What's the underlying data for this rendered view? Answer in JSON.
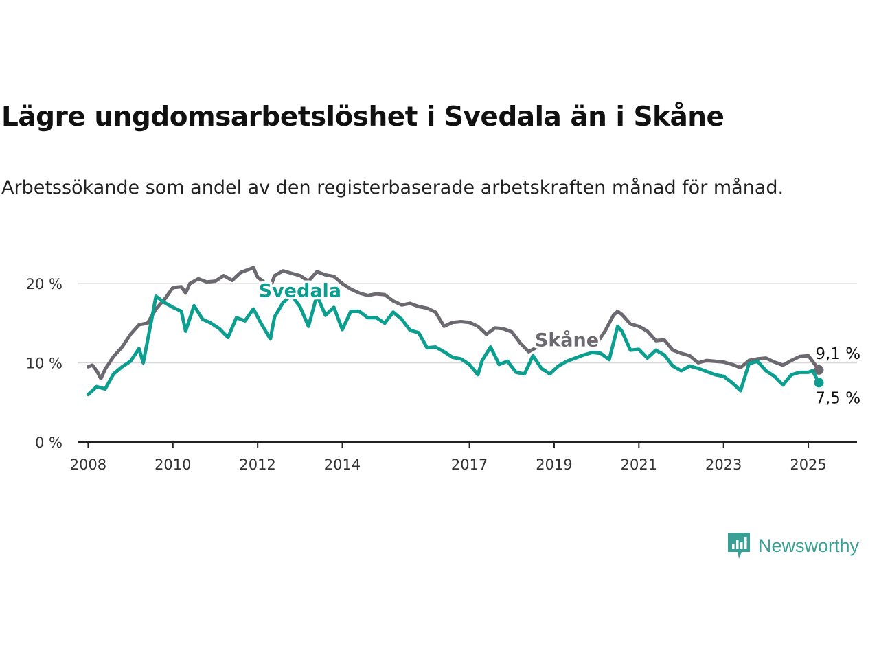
{
  "title": "Lägre ungdomsarbetslöshet i Svedala än i Skåne",
  "subtitle": "Arbetssökande som andel av den registerbaserade arbetskraften månad för månad.",
  "brand": {
    "name": "Newsworthy",
    "color": "#3aa095"
  },
  "chart_data": {
    "type": "line",
    "title": "Lägre ungdomsarbetslöshet i Svedala än i Skåne",
    "ylim": [
      0,
      22
    ],
    "y_ticks": [
      0,
      10,
      20
    ],
    "y_tick_labels": [
      "0 %",
      "10 %",
      "20 %"
    ],
    "x_ticks": [
      2008,
      2010,
      2012,
      2014,
      2017,
      2019,
      2021,
      2023,
      2025
    ],
    "x_range": [
      2007.75,
      2026.15
    ],
    "grid": true,
    "series": [
      {
        "name": "Skåne",
        "color": "#6c6a70",
        "end_label": "9,1 %",
        "x": [
          2008.0,
          2008.1,
          2008.2,
          2008.3,
          2008.4,
          2008.5,
          2008.6,
          2008.8,
          2009.0,
          2009.2,
          2009.4,
          2009.6,
          2009.8,
          2010.0,
          2010.2,
          2010.3,
          2010.4,
          2010.6,
          2010.8,
          2011.0,
          2011.2,
          2011.4,
          2011.6,
          2011.8,
          2011.9,
          2012.0,
          2012.2,
          2012.3,
          2012.4,
          2012.6,
          2012.8,
          2013.0,
          2013.2,
          2013.4,
          2013.6,
          2013.8,
          2014.0,
          2014.2,
          2014.4,
          2014.6,
          2014.8,
          2015.0,
          2015.2,
          2015.4,
          2015.6,
          2015.8,
          2016.0,
          2016.2,
          2016.4,
          2016.6,
          2016.8,
          2017.0,
          2017.2,
          2017.4,
          2017.6,
          2017.8,
          2018.0,
          2018.2,
          2018.4,
          2018.6,
          2018.8,
          2019.0,
          2019.2,
          2019.4,
          2019.6,
          2019.8,
          2020.0,
          2020.2,
          2020.4,
          2020.5,
          2020.6,
          2020.8,
          2021.0,
          2021.2,
          2021.4,
          2021.6,
          2021.8,
          2022.0,
          2022.2,
          2022.4,
          2022.6,
          2022.8,
          2023.0,
          2023.2,
          2023.4,
          2023.6,
          2023.8,
          2024.0,
          2024.2,
          2024.4,
          2024.6,
          2024.8,
          2025.0,
          2025.1,
          2025.25
        ],
        "values": [
          9.5,
          9.7,
          9.0,
          8.0,
          9.2,
          10.0,
          10.8,
          12.0,
          13.6,
          14.8,
          15.0,
          16.8,
          18.0,
          19.5,
          19.6,
          18.8,
          20.0,
          20.6,
          20.2,
          20.3,
          21.0,
          20.4,
          21.4,
          21.8,
          22.0,
          20.8,
          20.0,
          19.5,
          21.0,
          21.6,
          21.3,
          21.0,
          20.3,
          21.5,
          21.1,
          20.9,
          20.0,
          19.3,
          18.8,
          18.5,
          18.7,
          18.6,
          17.8,
          17.3,
          17.5,
          17.1,
          16.9,
          16.4,
          14.6,
          15.1,
          15.2,
          15.1,
          14.6,
          13.6,
          14.4,
          14.3,
          13.9,
          12.5,
          11.4,
          12.0,
          12.3,
          12.0,
          12.2,
          12.5,
          12.6,
          12.2,
          12.4,
          14.0,
          16.0,
          16.5,
          16.1,
          14.9,
          14.6,
          14.0,
          12.8,
          12.9,
          11.6,
          11.2,
          10.9,
          10.0,
          10.3,
          10.2,
          10.1,
          9.8,
          9.4,
          10.3,
          10.5,
          10.6,
          10.1,
          9.7,
          10.3,
          10.8,
          10.9,
          10.2,
          9.1
        ]
      },
      {
        "name": "Svedala",
        "color": "#0c9e8e",
        "end_label": "7,5 %",
        "x": [
          2008.0,
          2008.2,
          2008.4,
          2008.6,
          2008.8,
          2009.0,
          2009.2,
          2009.3,
          2009.5,
          2009.6,
          2009.8,
          2010.0,
          2010.2,
          2010.3,
          2010.5,
          2010.7,
          2010.9,
          2011.1,
          2011.3,
          2011.5,
          2011.7,
          2011.9,
          2012.1,
          2012.3,
          2012.4,
          2012.6,
          2012.8,
          2013.0,
          2013.2,
          2013.4,
          2013.6,
          2013.8,
          2014.0,
          2014.2,
          2014.4,
          2014.6,
          2014.8,
          2015.0,
          2015.2,
          2015.4,
          2015.6,
          2015.8,
          2016.0,
          2016.2,
          2016.4,
          2016.6,
          2016.8,
          2017.0,
          2017.2,
          2017.3,
          2017.5,
          2017.7,
          2017.9,
          2018.1,
          2018.3,
          2018.5,
          2018.7,
          2018.9,
          2019.1,
          2019.3,
          2019.5,
          2019.7,
          2019.9,
          2020.1,
          2020.3,
          2020.5,
          2020.6,
          2020.8,
          2021.0,
          2021.2,
          2021.4,
          2021.6,
          2021.8,
          2022.0,
          2022.2,
          2022.4,
          2022.6,
          2022.8,
          2023.0,
          2023.2,
          2023.4,
          2023.6,
          2023.8,
          2024.0,
          2024.2,
          2024.4,
          2024.6,
          2024.8,
          2025.0,
          2025.1,
          2025.25
        ],
        "values": [
          6.0,
          7.0,
          6.7,
          8.6,
          9.5,
          10.2,
          11.8,
          10.0,
          15.5,
          18.4,
          17.6,
          17.0,
          16.5,
          14.0,
          17.2,
          15.5,
          15.0,
          14.3,
          13.2,
          15.7,
          15.3,
          16.8,
          14.8,
          13.0,
          15.8,
          17.6,
          18.5,
          17.1,
          14.6,
          18.5,
          16.0,
          17.0,
          14.2,
          16.5,
          16.5,
          15.7,
          15.7,
          15.0,
          16.4,
          15.5,
          14.1,
          13.8,
          11.9,
          12.0,
          11.4,
          10.7,
          10.5,
          9.8,
          8.5,
          10.3,
          12.0,
          9.8,
          10.2,
          8.8,
          8.6,
          10.9,
          9.3,
          8.6,
          9.6,
          10.2,
          10.6,
          11.0,
          11.3,
          11.2,
          10.4,
          14.6,
          14.0,
          11.6,
          11.7,
          10.6,
          11.6,
          11.0,
          9.6,
          9.0,
          9.6,
          9.3,
          8.9,
          8.5,
          8.3,
          7.5,
          6.5,
          9.9,
          10.2,
          9.0,
          8.3,
          7.2,
          8.5,
          8.8,
          8.8,
          9.0,
          7.5
        ]
      }
    ],
    "series_labels": {
      "Svedala": "Svedala",
      "Skåne": "Skåne"
    }
  }
}
